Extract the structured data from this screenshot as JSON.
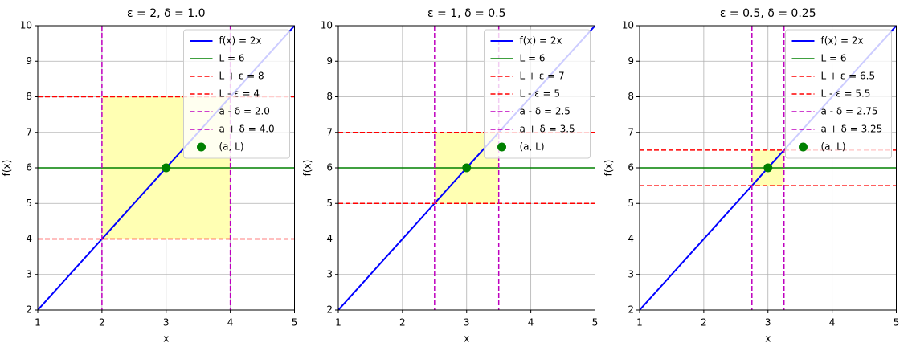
{
  "chart_data": [
    {
      "type": "line",
      "title": "ε = 2, δ = 1.0",
      "xlabel": "x",
      "ylabel": "f(x)",
      "xlim": [
        1,
        5
      ],
      "ylim": [
        2,
        10
      ],
      "xticks": [
        1,
        2,
        3,
        4,
        5
      ],
      "yticks": [
        2,
        3,
        4,
        5,
        6,
        7,
        8,
        9,
        10
      ],
      "grid": true,
      "legend": "upper right",
      "region_color": "#ffffb3",
      "series": [
        {
          "name": "f(x) = 2x",
          "kind": "line",
          "color": "#0000ff",
          "style": "solid",
          "x": [
            1,
            5
          ],
          "values": [
            2,
            10
          ]
        },
        {
          "name": "L = 6",
          "kind": "hline",
          "color": "#008000",
          "style": "solid",
          "values": [
            6
          ]
        },
        {
          "name": "L + ε = 8",
          "kind": "hline",
          "color": "#ff0000",
          "style": "dashed",
          "values": [
            8
          ]
        },
        {
          "name": "L - ε = 4",
          "kind": "hline",
          "color": "#ff0000",
          "style": "dashed",
          "values": [
            4
          ]
        },
        {
          "name": "a - δ = 2.0",
          "kind": "vline",
          "color": "#bf00bf",
          "style": "dashed",
          "x": [
            2
          ]
        },
        {
          "name": "a + δ = 4.0",
          "kind": "vline",
          "color": "#bf00bf",
          "style": "dashed",
          "x": [
            4
          ]
        },
        {
          "name": "(a, L)",
          "kind": "point",
          "color": "#008000",
          "x": [
            3
          ],
          "values": [
            6
          ]
        }
      ]
    },
    {
      "type": "line",
      "title": "ε = 1, δ = 0.5",
      "xlabel": "x",
      "ylabel": "f(x)",
      "xlim": [
        1,
        5
      ],
      "ylim": [
        2,
        10
      ],
      "xticks": [
        1,
        2,
        3,
        4,
        5
      ],
      "yticks": [
        2,
        3,
        4,
        5,
        6,
        7,
        8,
        9,
        10
      ],
      "grid": true,
      "legend": "upper right",
      "region_color": "#ffffb3",
      "series": [
        {
          "name": "f(x) = 2x",
          "kind": "line",
          "color": "#0000ff",
          "style": "solid",
          "x": [
            1,
            5
          ],
          "values": [
            2,
            10
          ]
        },
        {
          "name": "L = 6",
          "kind": "hline",
          "color": "#008000",
          "style": "solid",
          "values": [
            6
          ]
        },
        {
          "name": "L + ε = 7",
          "kind": "hline",
          "color": "#ff0000",
          "style": "dashed",
          "values": [
            7
          ]
        },
        {
          "name": "L - ε = 5",
          "kind": "hline",
          "color": "#ff0000",
          "style": "dashed",
          "values": [
            5
          ]
        },
        {
          "name": "a - δ = 2.5",
          "kind": "vline",
          "color": "#bf00bf",
          "style": "dashed",
          "x": [
            2.5
          ]
        },
        {
          "name": "a + δ = 3.5",
          "kind": "vline",
          "color": "#bf00bf",
          "style": "dashed",
          "x": [
            3.5
          ]
        },
        {
          "name": "(a, L)",
          "kind": "point",
          "color": "#008000",
          "x": [
            3
          ],
          "values": [
            6
          ]
        }
      ]
    },
    {
      "type": "line",
      "title": "ε = 0.5, δ = 0.25",
      "xlabel": "x",
      "ylabel": "f(x)",
      "xlim": [
        1,
        5
      ],
      "ylim": [
        2,
        10
      ],
      "xticks": [
        1,
        2,
        3,
        4,
        5
      ],
      "yticks": [
        2,
        3,
        4,
        5,
        6,
        7,
        8,
        9,
        10
      ],
      "grid": true,
      "legend": "upper right",
      "region_color": "#ffffb3",
      "series": [
        {
          "name": "f(x) = 2x",
          "kind": "line",
          "color": "#0000ff",
          "style": "solid",
          "x": [
            1,
            5
          ],
          "values": [
            2,
            10
          ]
        },
        {
          "name": "L = 6",
          "kind": "hline",
          "color": "#008000",
          "style": "solid",
          "values": [
            6
          ]
        },
        {
          "name": "L + ε = 6.5",
          "kind": "hline",
          "color": "#ff0000",
          "style": "dashed",
          "values": [
            6.5
          ]
        },
        {
          "name": "L - ε = 5.5",
          "kind": "hline",
          "color": "#ff0000",
          "style": "dashed",
          "values": [
            5.5
          ]
        },
        {
          "name": "a - δ = 2.75",
          "kind": "vline",
          "color": "#bf00bf",
          "style": "dashed",
          "x": [
            2.75
          ]
        },
        {
          "name": "a + δ = 3.25",
          "kind": "vline",
          "color": "#bf00bf",
          "style": "dashed",
          "x": [
            3.25
          ]
        },
        {
          "name": "(a, L)",
          "kind": "point",
          "color": "#008000",
          "x": [
            3
          ],
          "values": [
            6
          ]
        }
      ]
    }
  ]
}
